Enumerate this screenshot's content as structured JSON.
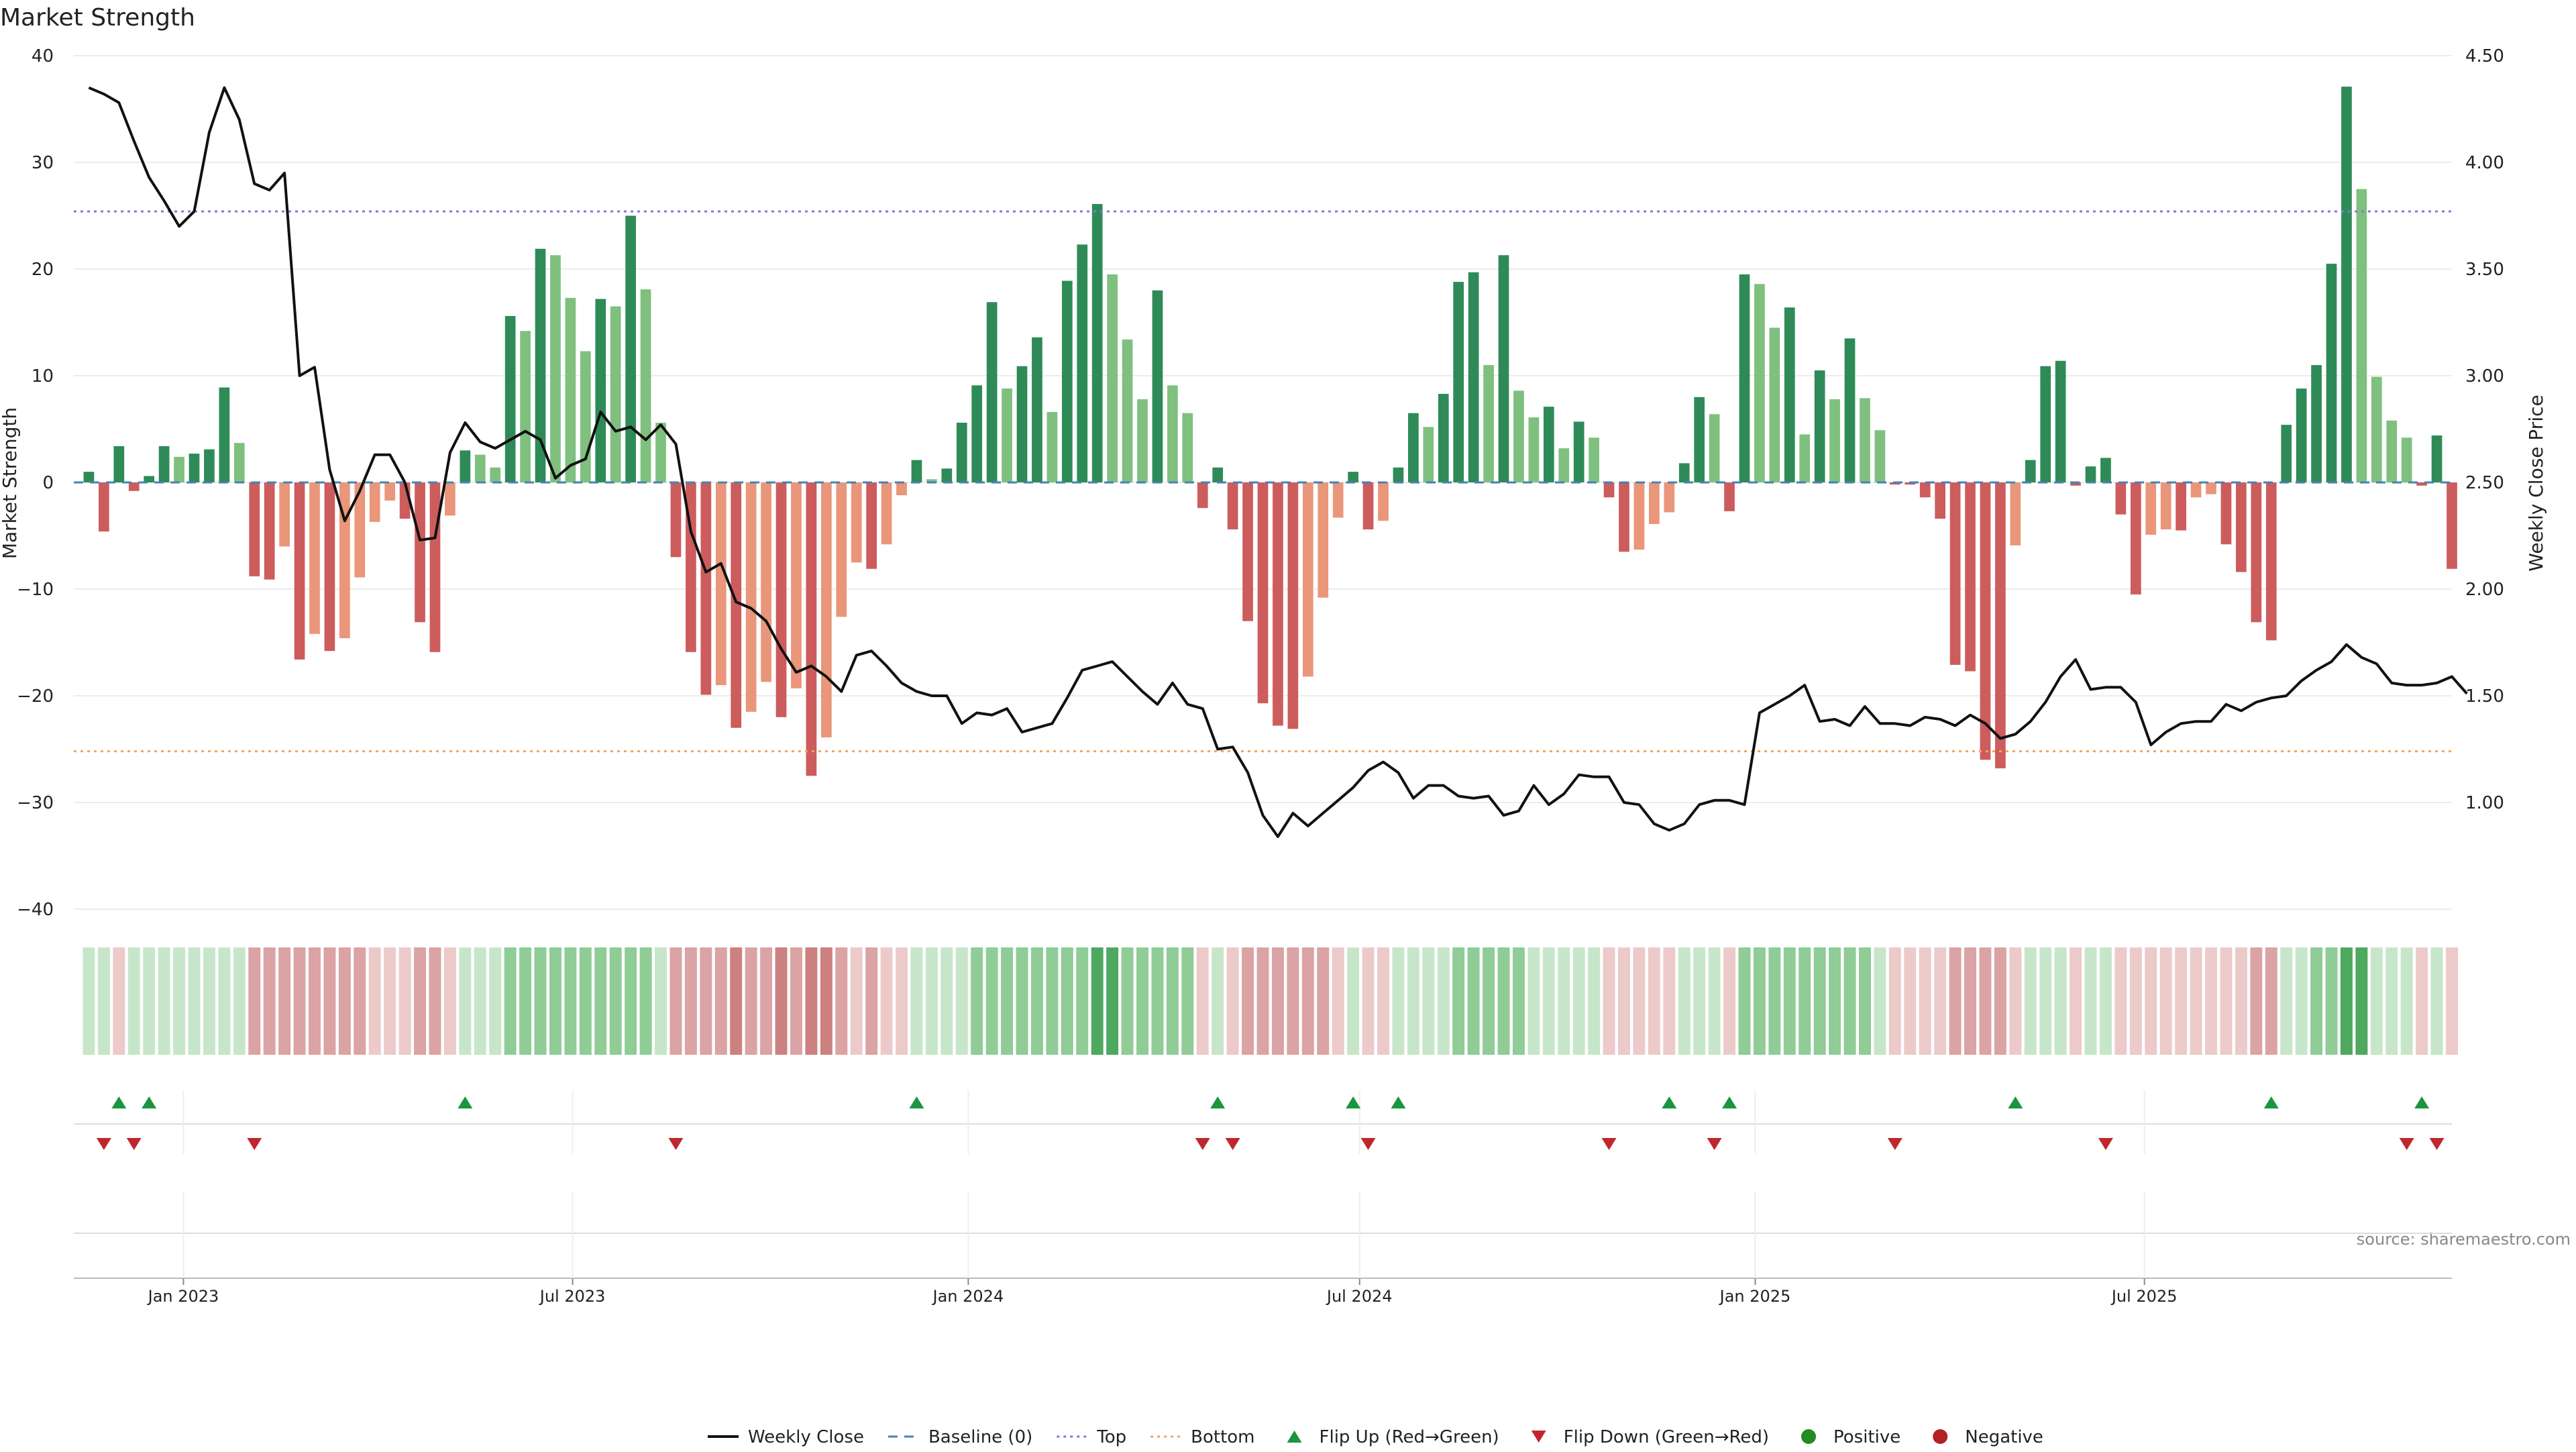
{
  "title": "Market Strength",
  "source": "source: sharemaestro.com",
  "colors": {
    "strong_green": "#2e8b57",
    "light_green": "#7fc07f",
    "strong_red": "#cd5c5c",
    "light_red": "#e9967a",
    "price_line": "#111111",
    "baseline": "#4682b4",
    "top_line": "#9370db",
    "bottom_line": "#f4a460",
    "flip_up": "#1a9641",
    "flip_down": "#c0272d",
    "positive": "#228b22",
    "negative": "#b22222"
  },
  "chart_data": {
    "type": "bar",
    "title": "Market Strength",
    "ylabel_left": "Market Strength",
    "ylabel_right": "Weekly Close Price",
    "ylim_left": [
      -40,
      40
    ],
    "ylim_right": [
      0.5,
      4.5
    ],
    "yticks_left": [
      -40,
      -30,
      -20,
      -10,
      0,
      10,
      20,
      30,
      40
    ],
    "yticks_left_labels": [
      "−40",
      "−30",
      "−20",
      "−10",
      "0",
      "10",
      "20",
      "30",
      "40"
    ],
    "yticks_right": [
      1.0,
      1.5,
      2.0,
      2.5,
      3.0,
      3.5,
      4.0,
      4.5
    ],
    "yticks_right_labels": [
      "1.00",
      "1.50",
      "2.00",
      "2.50",
      "3.00",
      "3.50",
      "4.00",
      "4.50"
    ],
    "x_range": [
      "2022-11-11",
      "2025-11-21"
    ],
    "x_ticks": [
      {
        "date": "2023-01-01",
        "label": "Jan 2023"
      },
      {
        "date": "2023-07-01",
        "label": "Jul 2023"
      },
      {
        "date": "2024-01-01",
        "label": "Jan 2024"
      },
      {
        "date": "2024-07-01",
        "label": "Jul 2024"
      },
      {
        "date": "2025-01-01",
        "label": "Jan 2025"
      },
      {
        "date": "2025-07-01",
        "label": "Jul 2025"
      }
    ],
    "start_week": "2022-11-18",
    "top_threshold": 25.4,
    "bottom_threshold": -25.2,
    "baseline": 0,
    "strength": [
      1,
      -4.6,
      3.4,
      -0.8,
      0.6,
      3.4,
      2.4,
      2.7,
      3.1,
      8.9,
      3.7,
      -8.8,
      -9.1,
      -6,
      -16.6,
      -14.2,
      -15.8,
      -14.6,
      -8.9,
      -3.7,
      -1.7,
      -3.4,
      -13.1,
      -15.9,
      -3.1,
      3,
      2.6,
      1.4,
      15.6,
      14.2,
      21.9,
      21.3,
      17.3,
      12.3,
      17.2,
      16.5,
      25,
      18.1,
      5.6,
      -7,
      -15.9,
      -19.9,
      -19,
      -23,
      -21.5,
      -18.7,
      -22,
      -19.3,
      -27.5,
      -23.9,
      -12.6,
      -7.5,
      -8.1,
      -5.8,
      -1.2,
      2.1,
      0.3,
      1.3,
      5.6,
      9.1,
      16.9,
      8.8,
      10.9,
      13.6,
      6.6,
      18.9,
      22.3,
      26.1,
      19.5,
      13.4,
      7.8,
      18,
      9.1,
      6.5,
      -2.4,
      1.4,
      -4.4,
      -13,
      -20.7,
      -22.8,
      -23.1,
      -18.2,
      -10.8,
      -3.3,
      1,
      -4.4,
      -3.6,
      1.4,
      6.5,
      5.2,
      8.3,
      18.8,
      19.7,
      11,
      21.3,
      8.6,
      6.1,
      7.1,
      3.2,
      5.7,
      4.2,
      -1.4,
      -6.5,
      -6.3,
      -3.9,
      -2.8,
      1.8,
      8,
      6.4,
      -2.7,
      19.5,
      18.6,
      14.5,
      16.4,
      4.5,
      10.5,
      7.8,
      13.5,
      7.9,
      4.9,
      -0.2,
      -0.2,
      -1.4,
      -3.4,
      -17.1,
      -17.7,
      -26,
      -26.8,
      -5.9,
      2.1,
      10.9,
      11.4,
      -0.3,
      1.5,
      2.3,
      -3,
      -10.5,
      -4.9,
      -4.4,
      -4.5,
      -1.4,
      -1.1,
      -5.8,
      -8.4,
      -13.1,
      -14.8,
      5.4,
      8.8,
      11,
      20.5,
      37.1,
      27.5,
      9.9,
      5.8,
      4.2,
      -0.3,
      4.4,
      -8.1
    ],
    "price": [
      4.35,
      4.32,
      4.28,
      4.1,
      3.93,
      3.82,
      3.7,
      3.77,
      4.14,
      4.35,
      4.2,
      3.9,
      3.87,
      3.95,
      3.0,
      3.04,
      2.56,
      2.32,
      2.46,
      2.63,
      2.63,
      2.5,
      2.23,
      2.24,
      2.64,
      2.78,
      2.69,
      2.66,
      2.7,
      2.74,
      2.7,
      2.52,
      2.58,
      2.61,
      2.83,
      2.74,
      2.76,
      2.7,
      2.77,
      2.68,
      2.27,
      2.08,
      2.12,
      1.94,
      1.91,
      1.85,
      1.72,
      1.61,
      1.64,
      1.59,
      1.52,
      1.69,
      1.71,
      1.64,
      1.56,
      1.52,
      1.5,
      1.5,
      1.37,
      1.42,
      1.41,
      1.44,
      1.33,
      1.35,
      1.37,
      1.49,
      1.62,
      1.64,
      1.66,
      1.59,
      1.52,
      1.46,
      1.56,
      1.46,
      1.44,
      1.25,
      1.26,
      1.14,
      0.94,
      0.84,
      0.95,
      0.89,
      0.95,
      1.01,
      1.07,
      1.15,
      1.19,
      1.14,
      1.02,
      1.08,
      1.08,
      1.03,
      1.02,
      1.03,
      0.94,
      0.96,
      1.08,
      0.99,
      1.04,
      1.13,
      1.12,
      1.12,
      1.0,
      0.99,
      0.9,
      0.87,
      0.9,
      0.99,
      1.01,
      1.01,
      0.99,
      1.42,
      1.46,
      1.5,
      1.55,
      1.38,
      1.39,
      1.36,
      1.45,
      1.37,
      1.37,
      1.36,
      1.4,
      1.39,
      1.36,
      1.41,
      1.37,
      1.3,
      1.32,
      1.38,
      1.47,
      1.59,
      1.67,
      1.53,
      1.54,
      1.54,
      1.47,
      1.27,
      1.33,
      1.37,
      1.38,
      1.38,
      1.46,
      1.43,
      1.47,
      1.49,
      1.5,
      1.57,
      1.62,
      1.66,
      1.74,
      1.68,
      1.65,
      1.56,
      1.55,
      1.55,
      1.56,
      1.59,
      1.51
    ],
    "heat_strips": [
      "lg",
      "lg",
      "lr",
      "lg",
      "lg",
      "lg",
      "lg",
      "lg",
      "lg",
      "lg",
      "lg",
      "mr",
      "mr",
      "mr",
      "mr",
      "mr",
      "mr",
      "mr",
      "mr",
      "lr",
      "lr",
      "lr",
      "mr",
      "mr",
      "lr",
      "lg",
      "lg",
      "lg",
      "mg",
      "mg",
      "mg",
      "mg",
      "mg",
      "mg",
      "mg",
      "mg",
      "mg",
      "mg",
      "lg",
      "mr",
      "mr",
      "mr",
      "mr",
      "sr",
      "mr",
      "mr",
      "sr",
      "mr",
      "sr",
      "sr",
      "mr",
      "lr",
      "mr",
      "lr",
      "lr",
      "lg",
      "lg",
      "lg",
      "lg",
      "mg",
      "mg",
      "mg",
      "mg",
      "mg",
      "mg",
      "mg",
      "mg",
      "sg",
      "sg",
      "mg",
      "mg",
      "mg",
      "mg",
      "mg",
      "lr",
      "lg",
      "lr",
      "mr",
      "mr",
      "mr",
      "mr",
      "mr",
      "mr",
      "lr",
      "lg",
      "lr",
      "lr",
      "lg",
      "lg",
      "lg",
      "lg",
      "mg",
      "mg",
      "mg",
      "mg",
      "mg",
      "lg",
      "lg",
      "lg",
      "lg",
      "lg",
      "lr",
      "lr",
      "lr",
      "lr",
      "lr",
      "lg",
      "lg",
      "lg",
      "lr",
      "mg",
      "mg",
      "mg",
      "mg",
      "mg",
      "mg",
      "mg",
      "mg",
      "mg",
      "lg",
      "lr",
      "lr",
      "lr",
      "lr",
      "mr",
      "mr",
      "mr",
      "mr",
      "lr",
      "lg",
      "lg",
      "lg",
      "lr",
      "lg",
      "lg",
      "lr",
      "lr",
      "lr",
      "lr",
      "lr",
      "lr",
      "lr",
      "lr",
      "lr",
      "mr",
      "mr",
      "lg",
      "lg",
      "mg",
      "mg",
      "sg",
      "sg",
      "lg",
      "lg",
      "lg",
      "lr",
      "lg",
      "lr"
    ],
    "flip_up": [
      2,
      4,
      25,
      55,
      75,
      84,
      87,
      105,
      109,
      128,
      145,
      155
    ],
    "flip_down": [
      1,
      3,
      11,
      39,
      74,
      76,
      85,
      101,
      108,
      120,
      134,
      154,
      156
    ],
    "legend": [
      {
        "label": "Weekly Close",
        "kind": "line"
      },
      {
        "label": "Baseline (0)",
        "kind": "dash"
      },
      {
        "label": "Top",
        "kind": "dot-top"
      },
      {
        "label": "Bottom",
        "kind": "dot-bottom"
      },
      {
        "label": "Flip Up (Red→Green)",
        "kind": "tri-up"
      },
      {
        "label": "Flip Down (Green→Red)",
        "kind": "tri-down"
      },
      {
        "label": "Positive",
        "kind": "dot-pos"
      },
      {
        "label": "Negative",
        "kind": "dot-neg"
      }
    ]
  }
}
